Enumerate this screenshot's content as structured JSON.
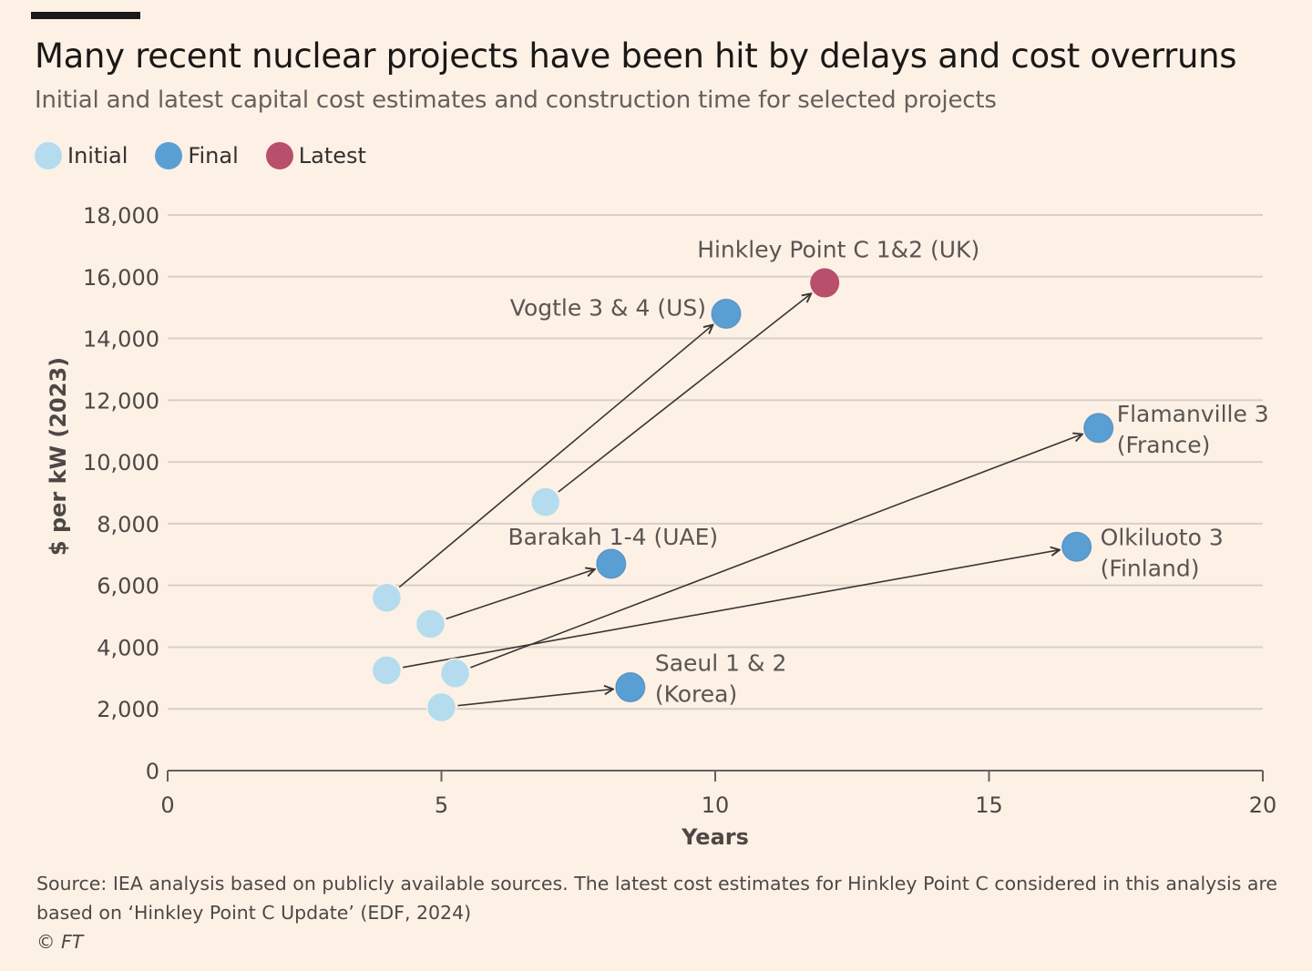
{
  "header": {
    "title": "Many recent nuclear projects have been hit by delays and cost overruns",
    "subtitle": "Initial and latest capital cost estimates and construction time for selected projects"
  },
  "legend": [
    {
      "label": "Initial",
      "color": "#b5dcee"
    },
    {
      "label": "Final",
      "color": "#5a9fd4"
    },
    {
      "label": "Latest",
      "color": "#b84f6c"
    }
  ],
  "colors": {
    "background": "#fdf1e6",
    "grid": "#d8d0c8",
    "axis": "#66605c",
    "arrow": "#3a3532",
    "initial": "#b5dcee",
    "final": "#5a9fd4",
    "latest": "#b84f6c"
  },
  "chart_data": {
    "type": "scatter",
    "xlabel": "Years",
    "ylabel": "$ per kW (2023)",
    "xlim": [
      0,
      20
    ],
    "ylim": [
      0,
      18000
    ],
    "x_ticks": [
      0,
      5,
      10,
      15,
      20
    ],
    "x_tick_labels": [
      "0",
      "5",
      "10",
      "15",
      "20"
    ],
    "y_ticks": [
      0,
      2000,
      4000,
      6000,
      8000,
      10000,
      12000,
      14000,
      16000,
      18000
    ],
    "y_tick_labels": [
      "0",
      "2,000",
      "4,000",
      "6,000",
      "8,000",
      "10,000",
      "12,000",
      "14,000",
      "16,000",
      "18,000"
    ],
    "grid": true,
    "legend_position": "top-left",
    "projects": [
      {
        "label": [
          "Vogtle 3 & 4 (US)"
        ],
        "initial": [
          4.0,
          5600
        ],
        "end": [
          10.2,
          14800
        ],
        "end_type": "final"
      },
      {
        "label": [
          "Hinkley Point C 1&2 (UK)"
        ],
        "initial": [
          6.9,
          8700
        ],
        "end": [
          12.0,
          15800
        ],
        "end_type": "latest"
      },
      {
        "label": [
          "Flamanville 3",
          "(France)"
        ],
        "initial": [
          5.25,
          3150
        ],
        "end": [
          17.0,
          11100
        ],
        "end_type": "final"
      },
      {
        "label": [
          "Olkiluoto 3",
          "(Finland)"
        ],
        "initial": [
          4.0,
          3250
        ],
        "end": [
          16.6,
          7250
        ],
        "end_type": "final"
      },
      {
        "label": [
          "Barakah 1-4 (UAE)"
        ],
        "initial": [
          4.8,
          4750
        ],
        "end": [
          8.1,
          6700
        ],
        "end_type": "final"
      },
      {
        "label": [
          "Saeul 1 & 2",
          "(Korea)"
        ],
        "initial": [
          5.0,
          2050
        ],
        "end": [
          8.45,
          2700
        ],
        "end_type": "final"
      }
    ]
  },
  "footer": {
    "source": "Source: IEA analysis based on publicly available sources. The latest cost estimates for Hinkley Point C considered in this analysis are based on ‘Hinkley Point C Update’ (EDF, 2024)",
    "copyright": "© FT"
  }
}
